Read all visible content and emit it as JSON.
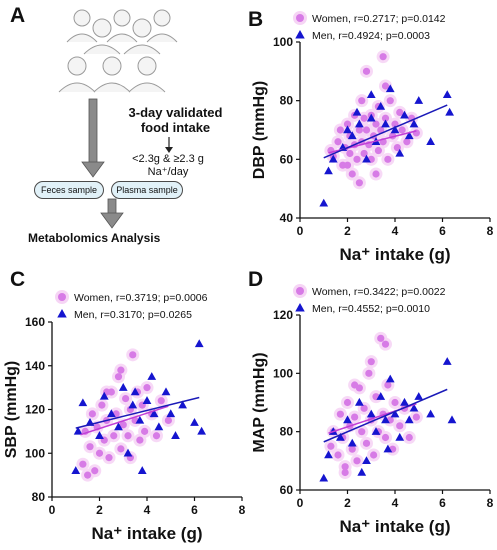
{
  "panels": {
    "a": "A",
    "b": "B",
    "c": "C",
    "d": "D"
  },
  "workflow": {
    "title_line1": "3-day validated",
    "title_line2": "food intake",
    "split_line1": "<2.3g & ≥2.3 g",
    "split_line2": "Na⁺/day",
    "feces": "Feces sample",
    "plasma": "Plasma sample",
    "analysis": "Metabolomics Analysis"
  },
  "colors": {
    "women_point": "#d77be6",
    "women_line": "#c23ed6",
    "women_halo": "#f6d5f5",
    "men_point": "#1515cf",
    "men_line": "#1a1ab8",
    "arrow": "#8a8a8a",
    "pill_fill": "#e1f1f8"
  },
  "chart_data": [
    {
      "panel": "B",
      "type": "scatter",
      "xlabel": "Na⁺ intake (g)",
      "ylabel": "DBP (mmHg)",
      "xlim": [
        0,
        8
      ],
      "ylim": [
        40,
        100
      ],
      "xticks": [
        "0",
        "2",
        "4",
        "6",
        "8"
      ],
      "yticks": [
        "40",
        "60",
        "80",
        "100"
      ],
      "legend_position": "top",
      "series": [
        {
          "name": "Women, r=0.2717; p=0.0142",
          "marker": "circle",
          "fit": [
            [
              1.2,
              62.2
            ],
            [
              4.9,
              69.7
            ]
          ],
          "points": [
            [
              1.3,
              63
            ],
            [
              1.4,
              61
            ],
            [
              1.6,
              66
            ],
            [
              1.7,
              70
            ],
            [
              1.8,
              58
            ],
            [
              1.9,
              64
            ],
            [
              2.0,
              72
            ],
            [
              2.1,
              62
            ],
            [
              2.1,
              68
            ],
            [
              2.2,
              55
            ],
            [
              2.3,
              65
            ],
            [
              2.3,
              75
            ],
            [
              2.4,
              60
            ],
            [
              2.5,
              70
            ],
            [
              2.5,
              52
            ],
            [
              2.6,
              66
            ],
            [
              2.6,
              80
            ],
            [
              2.7,
              62
            ],
            [
              2.8,
              70
            ],
            [
              2.8,
              90
            ],
            [
              2.9,
              65
            ],
            [
              3.0,
              75
            ],
            [
              3.0,
              60
            ],
            [
              3.1,
              68
            ],
            [
              3.2,
              72
            ],
            [
              3.2,
              55
            ],
            [
              3.3,
              78
            ],
            [
              3.3,
              63
            ],
            [
              3.4,
              70
            ],
            [
              3.5,
              95
            ],
            [
              3.5,
              66
            ],
            [
              3.6,
              74
            ],
            [
              3.7,
              60
            ],
            [
              3.8,
              80
            ],
            [
              3.9,
              68
            ],
            [
              4.0,
              72
            ],
            [
              4.1,
              64
            ],
            [
              4.2,
              76
            ],
            [
              4.3,
              70
            ],
            [
              4.5,
              66
            ],
            [
              4.7,
              74
            ],
            [
              4.9,
              69
            ],
            [
              2.0,
              58
            ],
            [
              2.7,
              74
            ],
            [
              3.6,
              85
            ]
          ]
        },
        {
          "name": "Men, r=0.4924; p=0.0003",
          "marker": "triangle",
          "fit": [
            [
              1.0,
              60.5
            ],
            [
              6.2,
              78.5
            ]
          ],
          "points": [
            [
              1.0,
              45
            ],
            [
              1.2,
              56
            ],
            [
              1.4,
              60
            ],
            [
              1.8,
              64
            ],
            [
              2.0,
              70
            ],
            [
              2.2,
              68
            ],
            [
              2.5,
              72
            ],
            [
              2.8,
              60
            ],
            [
              3.0,
              74
            ],
            [
              3.2,
              66
            ],
            [
              3.4,
              78
            ],
            [
              3.6,
              72
            ],
            [
              3.8,
              84
            ],
            [
              4.0,
              70
            ],
            [
              4.2,
              62
            ],
            [
              4.4,
              75
            ],
            [
              4.6,
              68
            ],
            [
              4.8,
              72
            ],
            [
              5.0,
              80
            ],
            [
              5.5,
              66
            ],
            [
              6.2,
              82
            ],
            [
              6.3,
              76
            ],
            [
              3.0,
              82
            ],
            [
              2.4,
              76
            ]
          ]
        }
      ]
    },
    {
      "panel": "C",
      "type": "scatter",
      "xlabel": "Na⁺ intake (g)",
      "ylabel": "SBP (mmHg)",
      "xlim": [
        0,
        8
      ],
      "ylim": [
        80,
        160
      ],
      "xticks": [
        "0",
        "2",
        "4",
        "6",
        "8"
      ],
      "yticks": [
        "80",
        "100",
        "120",
        "140",
        "160"
      ],
      "legend_position": "top",
      "series": [
        {
          "name": "Women, r=0.3719; p=0.0006",
          "marker": "circle",
          "fit": [
            [
              1.2,
              108.5
            ],
            [
              4.9,
              121.5
            ]
          ],
          "points": [
            [
              1.3,
              95
            ],
            [
              1.4,
              110
            ],
            [
              1.6,
              103
            ],
            [
              1.7,
              118
            ],
            [
              1.8,
              92
            ],
            [
              1.9,
              112
            ],
            [
              2.0,
              100
            ],
            [
              2.1,
              122
            ],
            [
              2.2,
              106
            ],
            [
              2.3,
              115
            ],
            [
              2.4,
              98
            ],
            [
              2.5,
              128
            ],
            [
              2.6,
              108
            ],
            [
              2.7,
              118
            ],
            [
              2.8,
              135
            ],
            [
              2.9,
              102
            ],
            [
              3.0,
              113
            ],
            [
              3.1,
              125
            ],
            [
              3.2,
              108
            ],
            [
              3.3,
              120
            ],
            [
              3.4,
              145
            ],
            [
              3.5,
              115
            ],
            [
              3.6,
              128
            ],
            [
              3.7,
              106
            ],
            [
              3.8,
              122
            ],
            [
              3.9,
              110
            ],
            [
              4.0,
              130
            ],
            [
              4.2,
              118
            ],
            [
              4.4,
              108
            ],
            [
              4.6,
              124
            ],
            [
              4.9,
              115
            ],
            [
              2.3,
              128
            ],
            [
              2.9,
              138
            ],
            [
              1.5,
              90
            ],
            [
              3.3,
              98
            ]
          ]
        },
        {
          "name": "Men, r=0.3170; p=0.0265",
          "marker": "triangle",
          "fit": [
            [
              1.0,
              111.5
            ],
            [
              6.2,
              125.5
            ]
          ],
          "points": [
            [
              1.0,
              92
            ],
            [
              1.1,
              110
            ],
            [
              1.3,
              123
            ],
            [
              1.6,
              114
            ],
            [
              2.0,
              108
            ],
            [
              2.2,
              126
            ],
            [
              2.5,
              118
            ],
            [
              2.8,
              112
            ],
            [
              3.0,
              130
            ],
            [
              3.2,
              100
            ],
            [
              3.4,
              122
            ],
            [
              3.7,
              115
            ],
            [
              4.0,
              124
            ],
            [
              4.2,
              135
            ],
            [
              4.5,
              112
            ],
            [
              4.8,
              128
            ],
            [
              5.0,
              118
            ],
            [
              5.2,
              108
            ],
            [
              5.5,
              122
            ],
            [
              6.0,
              114
            ],
            [
              6.2,
              150
            ],
            [
              6.3,
              110
            ],
            [
              3.8,
              92
            ],
            [
              3.5,
              128
            ],
            [
              4.3,
              118
            ]
          ]
        }
      ]
    },
    {
      "panel": "D",
      "type": "scatter",
      "xlabel": "Na⁺ intake (g)",
      "ylabel": "MAP (mmHg)",
      "xlim": [
        0,
        8
      ],
      "ylim": [
        60,
        120
      ],
      "xticks": [
        "0",
        "2",
        "4",
        "6",
        "8"
      ],
      "yticks": [
        "60",
        "80",
        "100",
        "120"
      ],
      "legend_position": "top",
      "series": [
        {
          "name": "Women, r=0.3422; p=0.0022",
          "marker": "circle",
          "fit": [
            [
              1.2,
              79.5
            ],
            [
              4.9,
              89.5
            ]
          ],
          "points": [
            [
              1.3,
              75
            ],
            [
              1.4,
              80
            ],
            [
              1.6,
              72
            ],
            [
              1.7,
              86
            ],
            [
              1.8,
              78
            ],
            [
              1.9,
              68
            ],
            [
              2.0,
              90
            ],
            [
              2.1,
              82
            ],
            [
              2.2,
              74
            ],
            [
              2.3,
              85
            ],
            [
              2.4,
              70
            ],
            [
              2.5,
              95
            ],
            [
              2.6,
              80
            ],
            [
              2.7,
              88
            ],
            [
              2.8,
              76
            ],
            [
              2.9,
              100
            ],
            [
              3.0,
              84
            ],
            [
              3.1,
              72
            ],
            [
              3.2,
              92
            ],
            [
              3.3,
              80
            ],
            [
              3.4,
              112
            ],
            [
              3.5,
              86
            ],
            [
              3.6,
              78
            ],
            [
              3.7,
              96
            ],
            [
              3.8,
              84
            ],
            [
              3.9,
              74
            ],
            [
              4.0,
              90
            ],
            [
              4.2,
              82
            ],
            [
              4.4,
              88
            ],
            [
              4.6,
              78
            ],
            [
              4.9,
              85
            ],
            [
              2.3,
              96
            ],
            [
              3.0,
              104
            ],
            [
              1.9,
              66
            ],
            [
              3.6,
              110
            ]
          ]
        },
        {
          "name": "Men, r=0.4552; p=0.0010",
          "marker": "triangle",
          "fit": [
            [
              1.0,
              76.5
            ],
            [
              6.2,
              94.5
            ]
          ],
          "points": [
            [
              1.0,
              64
            ],
            [
              1.2,
              72
            ],
            [
              1.4,
              80
            ],
            [
              1.7,
              78
            ],
            [
              2.0,
              84
            ],
            [
              2.2,
              76
            ],
            [
              2.5,
              90
            ],
            [
              2.8,
              70
            ],
            [
              3.0,
              86
            ],
            [
              3.2,
              80
            ],
            [
              3.4,
              92
            ],
            [
              3.6,
              84
            ],
            [
              3.8,
              98
            ],
            [
              4.0,
              86
            ],
            [
              4.2,
              78
            ],
            [
              4.4,
              90
            ],
            [
              4.6,
              84
            ],
            [
              4.8,
              88
            ],
            [
              5.0,
              92
            ],
            [
              5.5,
              86
            ],
            [
              6.2,
              104
            ],
            [
              6.4,
              84
            ],
            [
              2.6,
              66
            ],
            [
              3.7,
              74
            ]
          ]
        }
      ]
    }
  ]
}
